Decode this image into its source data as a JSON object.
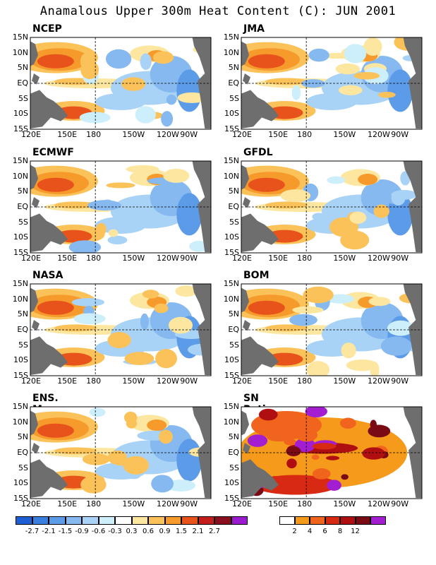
{
  "title": "Anamalous Upper 300m Heat Content (C): JUN 2001",
  "lat_labels": [
    "15N",
    "10N",
    "5N",
    "EQ",
    "5S",
    "10S",
    "15S"
  ],
  "lon_labels": [
    "120E",
    "150E",
    "180",
    "150W",
    "120W",
    "90W"
  ],
  "panels": [
    {
      "name": "NCEP",
      "kind": "anomaly"
    },
    {
      "name": "JMA",
      "kind": "anomaly"
    },
    {
      "name": "ECMWF",
      "kind": "anomaly"
    },
    {
      "name": "GFDL",
      "kind": "anomaly"
    },
    {
      "name": "NASA",
      "kind": "anomaly"
    },
    {
      "name": "BOM",
      "kind": "anomaly"
    },
    {
      "name": "ENS. Mean",
      "kind": "anomaly"
    },
    {
      "name": "SN Ratio",
      "kind": "ratio"
    }
  ],
  "anomaly_colorbar": {
    "colors": [
      "#1f5fd6",
      "#3a7fe0",
      "#5c9be8",
      "#86b9f0",
      "#a9d3f6",
      "#cdeefb",
      "#ffffff",
      "#fde7a0",
      "#fbc25a",
      "#f59a2b",
      "#e8521b",
      "#c41d1d",
      "#8a0f1e",
      "#9b1bd0"
    ],
    "labels": [
      "-2.7",
      "-2.1",
      "-1.5",
      "-0.9",
      "-0.6",
      "-0.3",
      "0.3",
      "0.6",
      "0.9",
      "1.5",
      "2.1",
      "2.7"
    ]
  },
  "ratio_colorbar": {
    "colors": [
      "#ffffff",
      "#f59a1b",
      "#f0641e",
      "#d82a12",
      "#b00f12",
      "#7a0a14",
      "#a21ed0"
    ],
    "labels": [
      "2",
      "4",
      "6",
      "8",
      "12"
    ]
  }
}
